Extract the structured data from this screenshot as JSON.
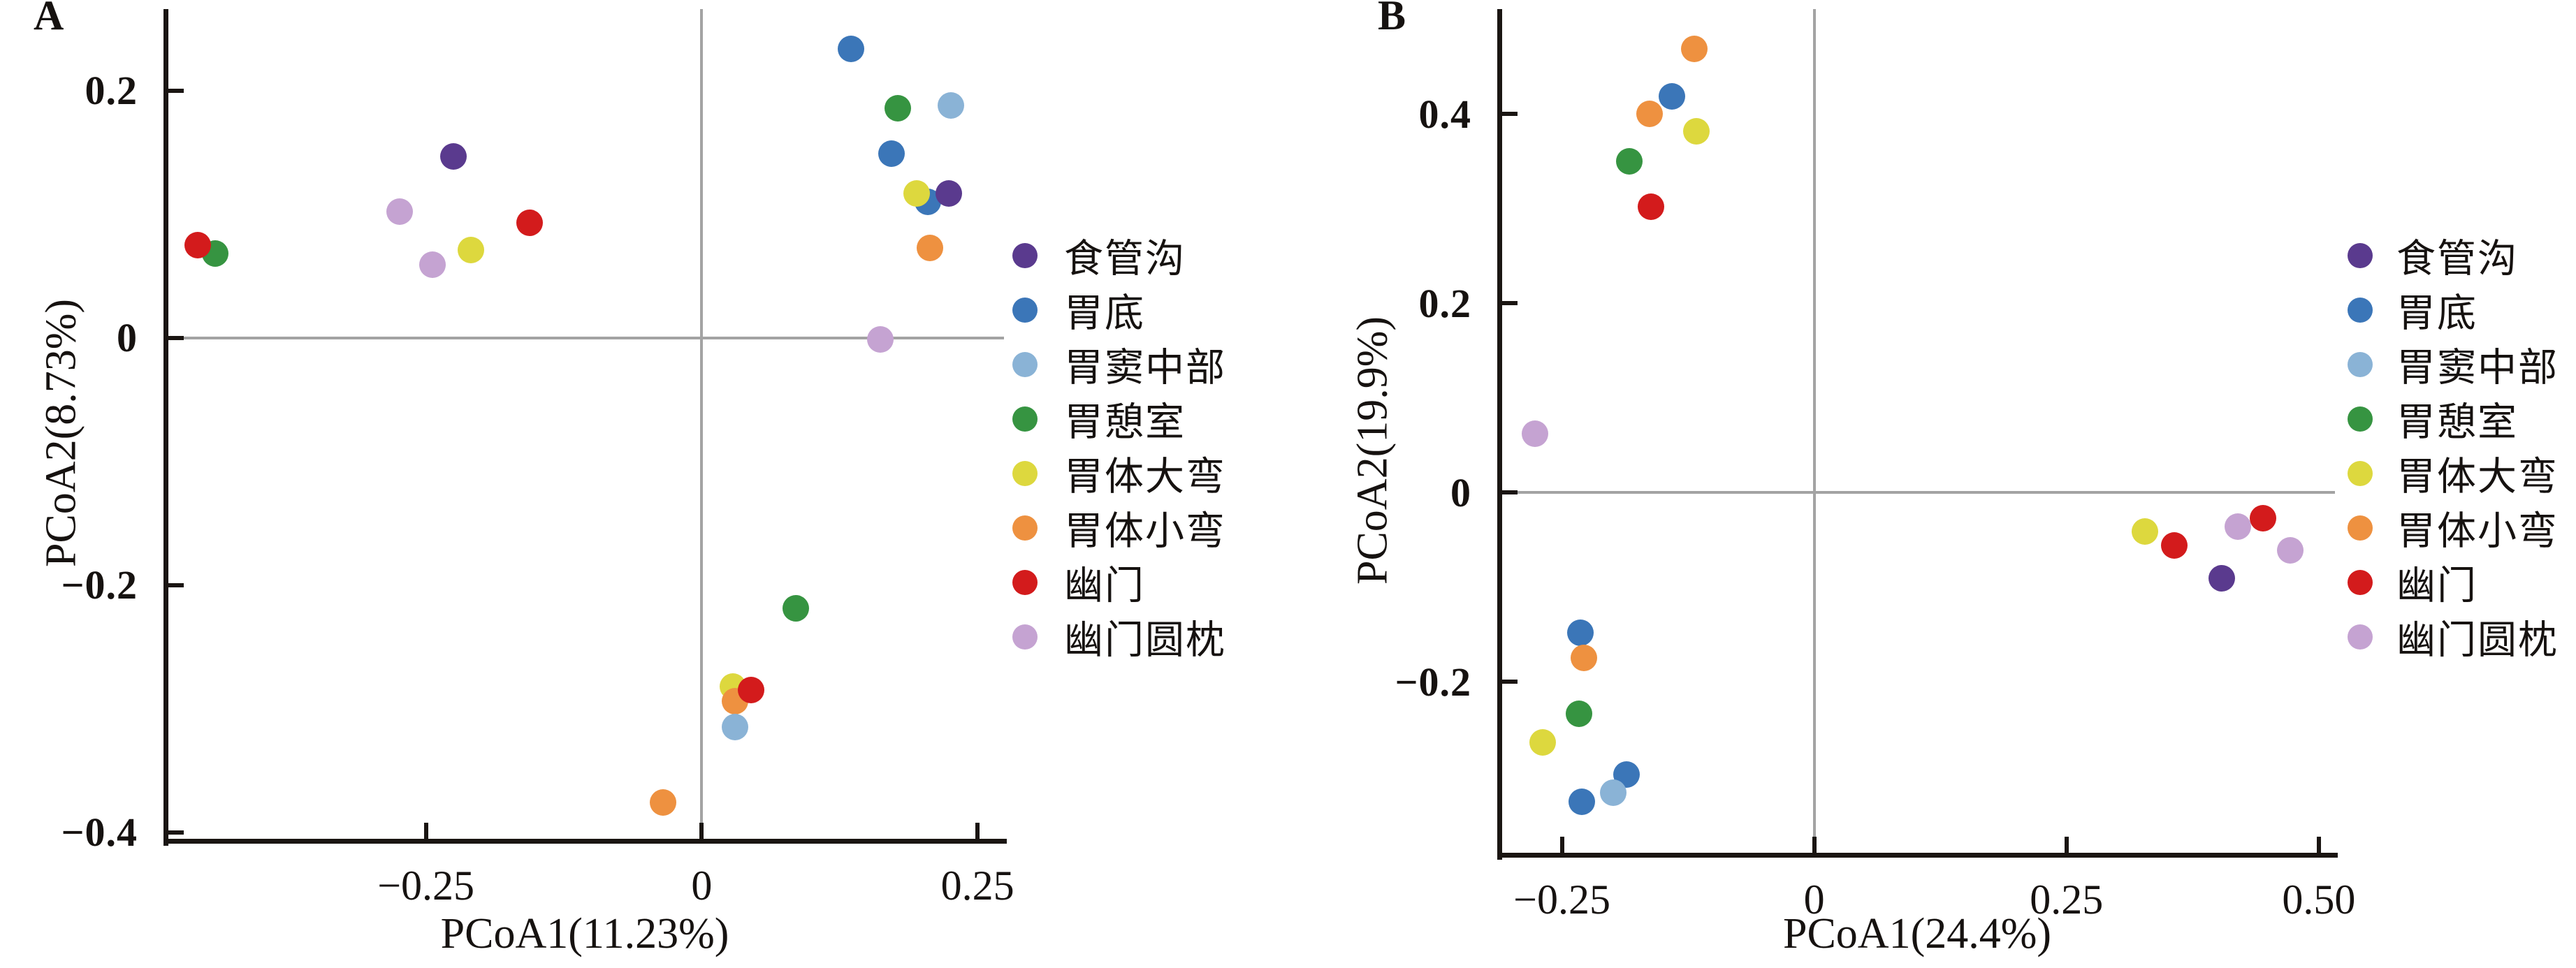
{
  "figure": {
    "background": "#ffffff",
    "text_color": "#161210",
    "zero_line_color": "#a3a3a3",
    "groups": [
      {
        "name": "食管沟",
        "color": "#5a3a8e"
      },
      {
        "name": "胃底",
        "color": "#3b76b8"
      },
      {
        "name": "胃窦中部",
        "color": "#8ab3d6"
      },
      {
        "name": "胃憩室",
        "color": "#369441"
      },
      {
        "name": "胃体大弯",
        "color": "#ddd83e"
      },
      {
        "name": "胃体小弯",
        "color": "#ee9140"
      },
      {
        "name": "幽门",
        "color": "#d31b1c"
      },
      {
        "name": "幽门圆枕",
        "color": "#c5a3d2"
      }
    ]
  },
  "chart_data": [
    {
      "type": "scatter",
      "panel_label": "A",
      "xlabel": "PCoA1(11.23%)",
      "ylabel": "PCoA2(8.73%)",
      "xlim": [
        -0.486,
        0.274
      ],
      "ylim": [
        -0.407,
        0.266
      ],
      "grid": false,
      "zero_lines": true,
      "legend_position": "right",
      "xticks": [
        {
          "v": -0.25,
          "label": "−0.25"
        },
        {
          "v": 0,
          "label": "0"
        },
        {
          "v": 0.25,
          "label": "0.25"
        }
      ],
      "yticks": [
        {
          "v": 0.2,
          "label": "0.2"
        },
        {
          "v": 0,
          "label": "0"
        },
        {
          "v": -0.2,
          "label": "−0.2"
        },
        {
          "v": -0.4,
          "label": "−0.4"
        }
      ],
      "legend": [
        "食管沟",
        "胃底",
        "胃窦中部",
        "胃憩室",
        "胃体大弯",
        "胃体小弯",
        "幽门",
        "幽门圆枕"
      ],
      "points": [
        {
          "group": "胃憩室",
          "x": -0.441,
          "y": 0.068
        },
        {
          "group": "幽门",
          "x": -0.457,
          "y": 0.075
        },
        {
          "group": "幽门圆枕",
          "x": -0.274,
          "y": 0.102
        },
        {
          "group": "食管沟",
          "x": -0.225,
          "y": 0.147
        },
        {
          "group": "幽门圆枕",
          "x": -0.244,
          "y": 0.059
        },
        {
          "group": "胃体大弯",
          "x": -0.209,
          "y": 0.071
        },
        {
          "group": "幽门",
          "x": -0.156,
          "y": 0.093
        },
        {
          "group": "胃底",
          "x": 0.135,
          "y": 0.234
        },
        {
          "group": "胃憩室",
          "x": 0.178,
          "y": 0.186
        },
        {
          "group": "胃窦中部",
          "x": 0.226,
          "y": 0.188
        },
        {
          "group": "胃底",
          "x": 0.172,
          "y": 0.149
        },
        {
          "group": "胃底",
          "x": 0.205,
          "y": 0.11
        },
        {
          "group": "胃体大弯",
          "x": 0.195,
          "y": 0.117
        },
        {
          "group": "食管沟",
          "x": 0.224,
          "y": 0.117
        },
        {
          "group": "胃体小弯",
          "x": 0.207,
          "y": 0.073
        },
        {
          "group": "幽门圆枕",
          "x": 0.162,
          "y": -0.001
        },
        {
          "group": "胃憩室",
          "x": 0.085,
          "y": -0.219
        },
        {
          "group": "胃体大弯",
          "x": 0.028,
          "y": -0.282
        },
        {
          "group": "胃体小弯",
          "x": 0.03,
          "y": -0.294
        },
        {
          "group": "幽门",
          "x": 0.045,
          "y": -0.285
        },
        {
          "group": "胃窦中部",
          "x": 0.03,
          "y": -0.315
        },
        {
          "group": "胃体小弯",
          "x": -0.035,
          "y": -0.376
        }
      ]
    },
    {
      "type": "scatter",
      "panel_label": "B",
      "xlabel": "PCoA1(24.4%)",
      "ylabel": "PCoA2(19.9%)",
      "xlim": [
        -0.312,
        0.516
      ],
      "ylim": [
        -0.383,
        0.511
      ],
      "grid": false,
      "zero_lines": true,
      "legend_position": "right",
      "xticks": [
        {
          "v": -0.25,
          "label": "−0.25"
        },
        {
          "v": 0,
          "label": "0"
        },
        {
          "v": 0.25,
          "label": "0.25"
        },
        {
          "v": 0.5,
          "label": "0.50"
        }
      ],
      "yticks": [
        {
          "v": 0.4,
          "label": "0.4"
        },
        {
          "v": 0.2,
          "label": "0.2"
        },
        {
          "v": 0,
          "label": "0"
        },
        {
          "v": -0.2,
          "label": "−0.2"
        }
      ],
      "legend": [
        "食管沟",
        "胃底",
        "胃窦中部",
        "胃憩室",
        "胃体大弯",
        "胃体小弯",
        "幽门",
        "幽门圆枕"
      ],
      "points": [
        {
          "group": "幽门圆枕",
          "x": -0.277,
          "y": 0.062
        },
        {
          "group": "胃体小弯",
          "x": -0.163,
          "y": 0.4
        },
        {
          "group": "胃底",
          "x": -0.141,
          "y": 0.419
        },
        {
          "group": "胃体小弯",
          "x": -0.119,
          "y": 0.469
        },
        {
          "group": "胃体大弯",
          "x": -0.117,
          "y": 0.382
        },
        {
          "group": "胃憩室",
          "x": -0.183,
          "y": 0.35
        },
        {
          "group": "幽门",
          "x": -0.162,
          "y": 0.302
        },
        {
          "group": "胃底",
          "x": -0.232,
          "y": -0.148
        },
        {
          "group": "胃体小弯",
          "x": -0.228,
          "y": -0.175
        },
        {
          "group": "胃憩室",
          "x": -0.233,
          "y": -0.234
        },
        {
          "group": "胃体大弯",
          "x": -0.269,
          "y": -0.264
        },
        {
          "group": "胃底",
          "x": -0.186,
          "y": -0.298
        },
        {
          "group": "胃窦中部",
          "x": -0.199,
          "y": -0.317
        },
        {
          "group": "胃底",
          "x": -0.23,
          "y": -0.327
        },
        {
          "group": "胃体大弯",
          "x": 0.328,
          "y": -0.041
        },
        {
          "group": "幽门",
          "x": 0.357,
          "y": -0.056
        },
        {
          "group": "食管沟",
          "x": 0.404,
          "y": -0.091
        },
        {
          "group": "幽门圆枕",
          "x": 0.42,
          "y": -0.036
        },
        {
          "group": "幽门",
          "x": 0.445,
          "y": -0.027
        },
        {
          "group": "幽门圆枕",
          "x": 0.472,
          "y": -0.061
        }
      ]
    }
  ]
}
